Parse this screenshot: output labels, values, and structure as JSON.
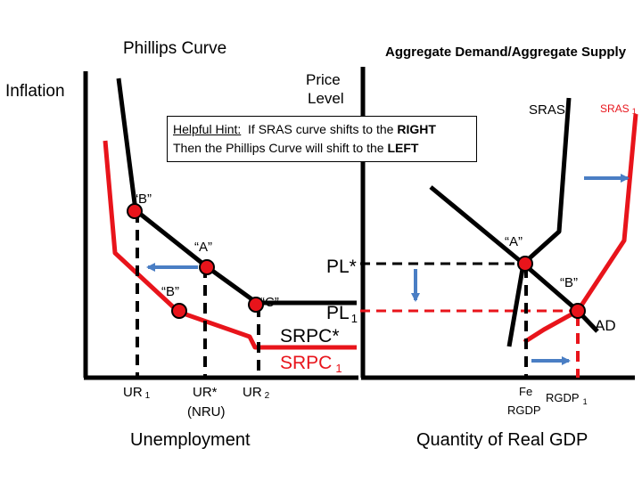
{
  "left_panel": {
    "title": "Phillips Curve",
    "y_axis_label": "Inflation",
    "x_axis_label": "Unemployment",
    "x_ticks": [
      {
        "main": "UR",
        "sub": "1"
      },
      {
        "main": "UR*",
        "sub": "",
        "note": "(NRU)"
      },
      {
        "main": "UR",
        "sub": "2"
      }
    ],
    "point_labels": {
      "b_top": "“B”",
      "a": "“A”",
      "b_lower": "“B”",
      "c": "“C”"
    },
    "curve_labels": {
      "srpc_star": "SRPC*",
      "srpc_1": "SRPC",
      "srpc_1_sub": "1"
    }
  },
  "right_panel": {
    "title": "Aggregate Demand/Aggregate Supply",
    "y_axis_label_line1": "Price",
    "y_axis_label_line2": "Level",
    "x_axis_label": "Quantity of Real GDP",
    "price_labels": {
      "pl_star": "PL*",
      "pl_1": "PL",
      "pl_1_sub": "1"
    },
    "curve_labels": {
      "sras": "SRAS",
      "sras_1": "SRAS",
      "sras_1_sub": "1",
      "ad": "AD"
    },
    "point_labels": {
      "a": "“A”",
      "b": "“B”"
    },
    "x_ticks": {
      "fe_line1": "Fe",
      "fe_line2": "RGDP",
      "rgdp_1": "RGDP",
      "rgdp_1_sub": "1"
    }
  },
  "hint": {
    "prefix": "Helpful Hint:",
    "line1_rest": "  If SRAS curve shifts to the ",
    "line1_bold": "RIGHT",
    "line2_rest": "Then the Phillips Curve will shift to the ",
    "line2_bold": "LEFT"
  },
  "colors": {
    "original": "#000000",
    "shifted": "#e8141b",
    "point": "#e8141b",
    "arrow": "#4a7ec4"
  }
}
